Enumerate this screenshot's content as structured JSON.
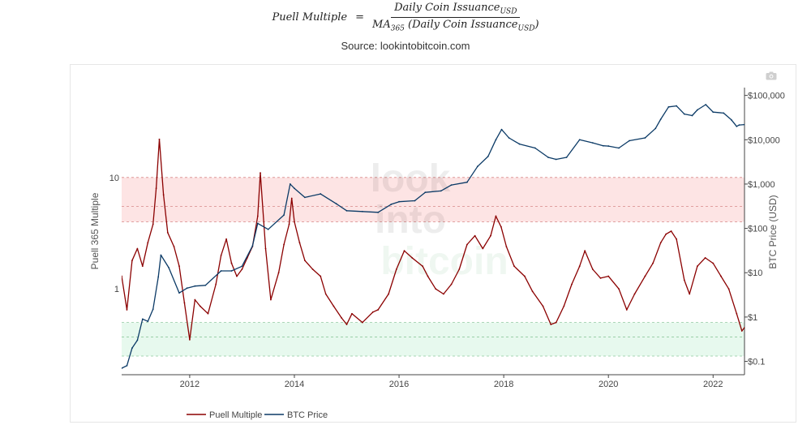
{
  "header": {
    "formula_left": "Puell Multiple",
    "formula_equals": "=",
    "numerator_main": "Daily Coin Issuance",
    "numerator_sub": "USD",
    "denominator_ma": "MA",
    "denominator_ma_sub": "365",
    "denominator_main": " (Daily Coin Issuance",
    "denominator_sub": "USD",
    "denominator_close": ")",
    "source": "Source: lookintobitcoin.com"
  },
  "toolbar": {
    "camera_icon": "camera-icon"
  },
  "watermark": [
    "look",
    "into",
    "bitcoin"
  ],
  "colors": {
    "puell": "#8b0000",
    "puell_in_band": "#c98989",
    "btc": "#0b3a66",
    "red_band": "#fde4e4",
    "green_band": "#e7f9ee",
    "band_line": "#d88888",
    "green_line": "#8fc99f"
  },
  "chart_data": {
    "type": "line",
    "xlabel": "",
    "x_range": [
      2010.7,
      2022.6
    ],
    "x_ticks": [
      {
        "value": 2012,
        "label": "2012"
      },
      {
        "value": 2014,
        "label": "2014"
      },
      {
        "value": 2016,
        "label": "2016"
      },
      {
        "value": 2018,
        "label": "2018"
      },
      {
        "value": 2020,
        "label": "2020"
      },
      {
        "value": 2022,
        "label": "2022"
      }
    ],
    "y_left": {
      "label": "Puell 365 Multiple",
      "scale": "log",
      "range": [
        0.17,
        64
      ],
      "ticks": [
        {
          "value": 1,
          "label": "1"
        },
        {
          "value": 10,
          "label": "10"
        }
      ]
    },
    "y_right": {
      "label": "BTC Price (USD)",
      "scale": "log",
      "range": [
        0.05,
        150000
      ],
      "ticks": [
        {
          "value": 0.1,
          "label": "$0.1"
        },
        {
          "value": 1,
          "label": "$1"
        },
        {
          "value": 10,
          "label": "$10"
        },
        {
          "value": 100,
          "label": "$100"
        },
        {
          "value": 1000,
          "label": "$1,000"
        },
        {
          "value": 10000,
          "label": "$10,000"
        },
        {
          "value": 100000,
          "label": "$100,000"
        }
      ]
    },
    "bands": [
      {
        "name": "high",
        "from": 4,
        "to": 10,
        "lines": [
          4,
          5.5,
          10
        ]
      },
      {
        "name": "low",
        "from": 0.25,
        "to": 0.5,
        "lines": [
          0.25,
          0.37,
          0.5
        ]
      }
    ],
    "series": [
      {
        "name": "Puell Multiple",
        "axis": "left",
        "x": [
          2010.7,
          2010.8,
          2010.9,
          2011.0,
          2011.1,
          2011.2,
          2011.3,
          2011.36,
          2011.42,
          2011.5,
          2011.58,
          2011.7,
          2011.8,
          2011.9,
          2012.0,
          2012.1,
          2012.2,
          2012.35,
          2012.5,
          2012.6,
          2012.7,
          2012.8,
          2012.9,
          2013.0,
          2013.1,
          2013.2,
          2013.3,
          2013.35,
          2013.45,
          2013.55,
          2013.7,
          2013.8,
          2013.9,
          2013.95,
          2014.0,
          2014.1,
          2014.2,
          2014.35,
          2014.5,
          2014.6,
          2014.75,
          2014.9,
          2015.0,
          2015.1,
          2015.3,
          2015.5,
          2015.6,
          2015.8,
          2015.95,
          2016.1,
          2016.25,
          2016.45,
          2016.55,
          2016.7,
          2016.85,
          2017.0,
          2017.15,
          2017.3,
          2017.45,
          2017.6,
          2017.75,
          2017.85,
          2017.95,
          2018.05,
          2018.2,
          2018.4,
          2018.55,
          2018.75,
          2018.9,
          2019.0,
          2019.15,
          2019.3,
          2019.45,
          2019.55,
          2019.7,
          2019.85,
          2020.0,
          2020.2,
          2020.35,
          2020.5,
          2020.7,
          2020.85,
          2021.0,
          2021.1,
          2021.2,
          2021.3,
          2021.45,
          2021.55,
          2021.7,
          2021.85,
          2022.0,
          2022.15,
          2022.3,
          2022.45,
          2022.55,
          2022.6
        ],
        "y": [
          1.3,
          0.65,
          1.8,
          2.3,
          1.6,
          2.6,
          3.8,
          8.0,
          22.0,
          7.0,
          3.2,
          2.4,
          1.6,
          0.75,
          0.35,
          0.8,
          0.7,
          0.6,
          1.1,
          2.0,
          2.8,
          1.7,
          1.3,
          1.5,
          1.9,
          2.4,
          4.5,
          11.0,
          2.3,
          0.8,
          1.4,
          2.5,
          3.8,
          6.5,
          4.0,
          2.6,
          1.8,
          1.5,
          1.3,
          0.9,
          0.7,
          0.55,
          0.48,
          0.6,
          0.5,
          0.62,
          0.65,
          0.9,
          1.5,
          2.2,
          1.9,
          1.6,
          1.3,
          1.0,
          0.9,
          1.1,
          1.5,
          2.5,
          3.0,
          2.3,
          3.0,
          4.5,
          3.6,
          2.4,
          1.6,
          1.3,
          0.95,
          0.7,
          0.48,
          0.5,
          0.7,
          1.1,
          1.6,
          2.2,
          1.5,
          1.25,
          1.3,
          1.0,
          0.65,
          0.9,
          1.3,
          1.7,
          2.6,
          3.1,
          3.3,
          2.8,
          1.2,
          0.9,
          1.6,
          1.9,
          1.7,
          1.3,
          1.0,
          0.6,
          0.42,
          0.45
        ]
      },
      {
        "name": "BTC Price",
        "axis": "right",
        "x": [
          2010.7,
          2010.8,
          2010.9,
          2011.0,
          2011.1,
          2011.2,
          2011.3,
          2011.4,
          2011.45,
          2011.6,
          2011.8,
          2011.95,
          2012.1,
          2012.3,
          2012.6,
          2012.8,
          2013.0,
          2013.2,
          2013.3,
          2013.5,
          2013.8,
          2013.92,
          2014.0,
          2014.2,
          2014.5,
          2014.8,
          2015.0,
          2015.3,
          2015.6,
          2015.85,
          2016.0,
          2016.3,
          2016.5,
          2016.8,
          2017.0,
          2017.3,
          2017.5,
          2017.7,
          2017.85,
          2017.96,
          2018.1,
          2018.3,
          2018.6,
          2018.85,
          2019.0,
          2019.2,
          2019.45,
          2019.7,
          2019.9,
          2020.0,
          2020.2,
          2020.4,
          2020.7,
          2020.9,
          2021.0,
          2021.15,
          2021.3,
          2021.45,
          2021.6,
          2021.7,
          2021.86,
          2022.0,
          2022.2,
          2022.35,
          2022.45,
          2022.5,
          2022.6
        ],
        "y": [
          0.07,
          0.08,
          0.2,
          0.3,
          0.9,
          0.8,
          1.5,
          8,
          25,
          13,
          3.5,
          4.5,
          5,
          5.2,
          11,
          11,
          14,
          40,
          130,
          95,
          200,
          1000,
          800,
          500,
          600,
          360,
          250,
          240,
          230,
          350,
          400,
          420,
          650,
          700,
          950,
          1100,
          2500,
          4200,
          10000,
          17000,
          11000,
          8000,
          6500,
          4000,
          3600,
          4000,
          10000,
          8500,
          7300,
          7200,
          6500,
          9500,
          11000,
          18000,
          29000,
          55000,
          58000,
          38000,
          35000,
          47000,
          62000,
          42000,
          40000,
          28000,
          20000,
          21500,
          22000
        ]
      }
    ]
  },
  "legend": {
    "position": "bottom",
    "items": [
      {
        "label": "Puell Multiple",
        "color": "#8b0000"
      },
      {
        "label": "BTC Price",
        "color": "#0b3a66"
      }
    ]
  }
}
